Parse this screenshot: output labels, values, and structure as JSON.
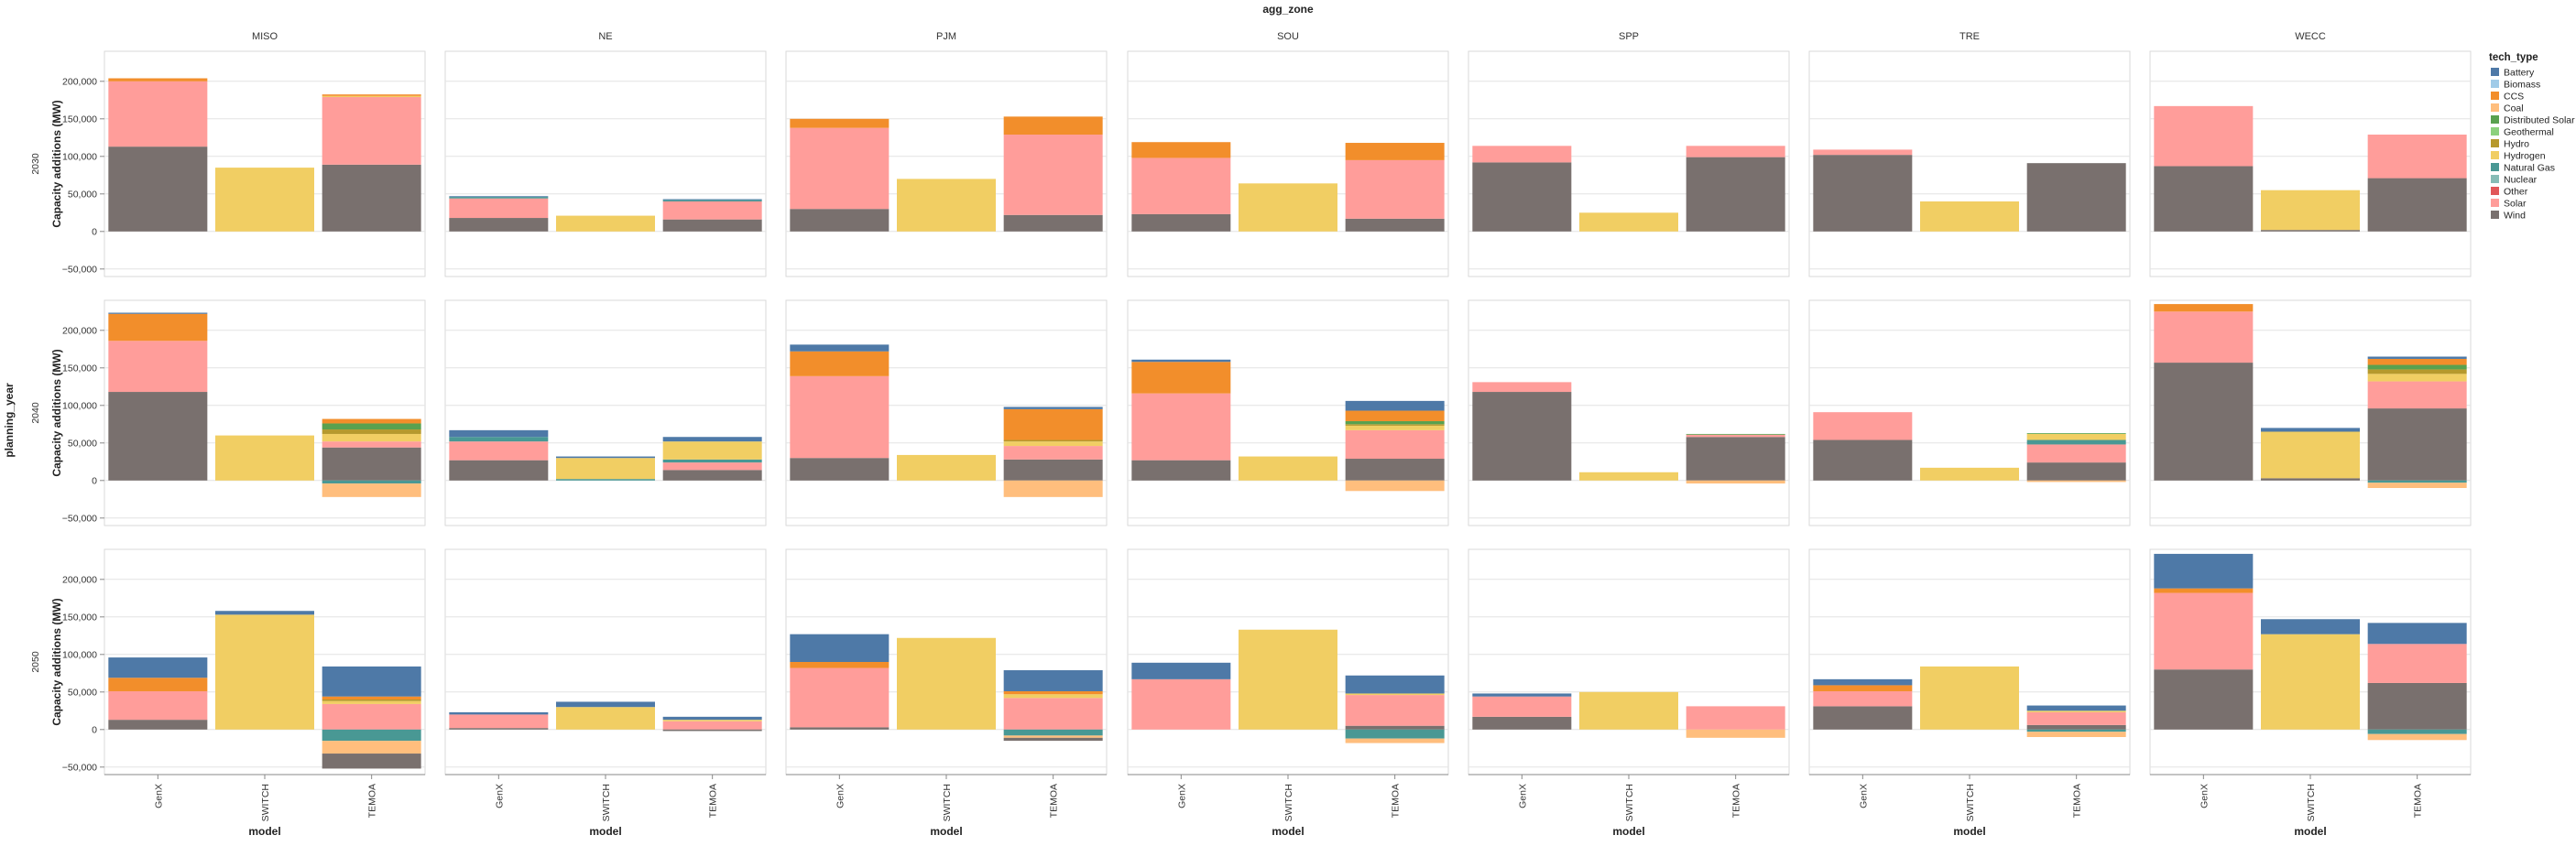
{
  "chart_data": {
    "type": "bar",
    "stacked": true,
    "title": "agg_zone",
    "row_title": "planning_year",
    "xlabel": "model",
    "ylabel": "Capacity additions (MW)",
    "ylim": [
      -60000,
      240000
    ],
    "yticks": [
      -50000,
      0,
      50000,
      100000,
      150000,
      200000
    ],
    "ytick_labels": [
      "−50,000",
      "0",
      "50,000",
      "100,000",
      "150,000",
      "200,000"
    ],
    "grid": true,
    "legend_position": "right",
    "legend_title": "tech_type",
    "zones": [
      "MISO",
      "NE",
      "PJM",
      "SOU",
      "SPP",
      "TRE",
      "WECC"
    ],
    "years": [
      "2030",
      "2040",
      "2050"
    ],
    "models": [
      "GenX",
      "SWITCH",
      "TEMOA"
    ],
    "techs": [
      {
        "name": "Battery",
        "color": "#4e79a7"
      },
      {
        "name": "Biomass",
        "color": "#a0cbe8"
      },
      {
        "name": "CCS",
        "color": "#f28e2b"
      },
      {
        "name": "Coal",
        "color": "#ffbe7d"
      },
      {
        "name": "Distributed Solar",
        "color": "#59a14f"
      },
      {
        "name": "Geothermal",
        "color": "#8cd17d"
      },
      {
        "name": "Hydro",
        "color": "#b6992d"
      },
      {
        "name": "Hydrogen",
        "color": "#f1ce63"
      },
      {
        "name": "Natural Gas",
        "color": "#499894"
      },
      {
        "name": "Nuclear",
        "color": "#86bcb6"
      },
      {
        "name": "Other",
        "color": "#e15759"
      },
      {
        "name": "Solar",
        "color": "#ff9d9a"
      },
      {
        "name": "Wind",
        "color": "#79706e"
      }
    ],
    "panels": {
      "2030": {
        "MISO": {
          "GenX": {
            "Wind": 113000,
            "Solar": 87000,
            "CCS": 4000
          },
          "SWITCH": {
            "Hydrogen": 85000
          },
          "TEMOA": {
            "Wind": 89000,
            "Solar": 90000,
            "CCS": 2000,
            "Hydrogen": 1500
          }
        },
        "NE": {
          "GenX": {
            "Wind": 18000,
            "Solar": 26000,
            "Natural Gas": 2000,
            "Battery": 1000
          },
          "SWITCH": {
            "Hydrogen": 21000
          },
          "TEMOA": {
            "Wind": 16000,
            "Solar": 24000,
            "Natural Gas": 2000,
            "Battery": 1000
          }
        },
        "PJM": {
          "GenX": {
            "Wind": 30000,
            "Solar": 108000,
            "CCS": 12000
          },
          "SWITCH": {
            "Hydrogen": 70000
          },
          "TEMOA": {
            "Wind": 22000,
            "Solar": 107000,
            "CCS": 24000
          }
        },
        "SOU": {
          "GenX": {
            "Wind": 23000,
            "Solar": 75000,
            "CCS": 21000
          },
          "SWITCH": {
            "Hydrogen": 64000
          },
          "TEMOA": {
            "Wind": 17000,
            "Solar": 78000,
            "CCS": 23000
          }
        },
        "SPP": {
          "GenX": {
            "Wind": 92000,
            "Solar": 22000
          },
          "SWITCH": {
            "Hydrogen": 25000
          },
          "TEMOA": {
            "Wind": 99000,
            "Solar": 15000
          }
        },
        "TRE": {
          "GenX": {
            "Wind": 102000,
            "Solar": 7000
          },
          "SWITCH": {
            "Hydrogen": 40000
          },
          "TEMOA": {
            "Wind": 91000
          }
        },
        "WECC": {
          "GenX": {
            "Wind": 87000,
            "Solar": 80000
          },
          "SWITCH": {
            "Wind": 2000,
            "Hydrogen": 53000
          },
          "TEMOA": {
            "Wind": 71000,
            "Solar": 58000
          }
        }
      },
      "2040": {
        "MISO": {
          "GenX": {
            "Wind": 118000,
            "Solar": 68000,
            "CCS": 36000,
            "Battery": 1500
          },
          "SWITCH": {
            "Hydrogen": 60000
          },
          "TEMOA": {
            "Wind": 44000,
            "Hydrogen": 10000,
            "Solar": 8000,
            "Distributed Solar": 8000,
            "Hydro": 6000,
            "CCS": 6000,
            "Natural Gas": -4000,
            "Coal": -18000
          }
        },
        "NE": {
          "GenX": {
            "Wind": 27000,
            "Solar": 25000,
            "Natural Gas": 6000,
            "Battery": 9000
          },
          "SWITCH": {
            "Hydrogen": 28000,
            "Natural Gas": 2000,
            "Battery": 2000
          },
          "TEMOA": {
            "Wind": 14000,
            "Solar": 10000,
            "Hydrogen": 24000,
            "Natural Gas": 4000,
            "Battery": 6000
          }
        },
        "PJM": {
          "GenX": {
            "Wind": 30000,
            "Solar": 109000,
            "CCS": 33000,
            "Battery": 9000
          },
          "SWITCH": {
            "Hydrogen": 34000
          },
          "TEMOA": {
            "Wind": 28000,
            "Solar": 18000,
            "Hydrogen": 6000,
            "CCS": 41000,
            "Hydro": 2000,
            "Battery": 3000,
            "Coal": -22000
          }
        },
        "SOU": {
          "GenX": {
            "Wind": 27000,
            "Solar": 89000,
            "CCS": 42000,
            "Battery": 3000
          },
          "SWITCH": {
            "Hydrogen": 32000
          },
          "TEMOA": {
            "Wind": 29000,
            "Solar": 38000,
            "Distributed Solar": 4000,
            "Hydrogen": 6000,
            "CCS": 14000,
            "Hydro": 2000,
            "Battery": 13000,
            "Coal": -14000
          }
        },
        "SPP": {
          "GenX": {
            "Wind": 118000,
            "Solar": 13000
          },
          "SWITCH": {
            "Hydrogen": 11000
          },
          "TEMOA": {
            "Wind": 58000,
            "Solar": 3000,
            "Distributed Solar": 1000,
            "Coal": -4000
          }
        },
        "TRE": {
          "GenX": {
            "Wind": 54000,
            "Solar": 37000
          },
          "SWITCH": {
            "Hydrogen": 17000
          },
          "TEMOA": {
            "Wind": 24000,
            "Solar": 24000,
            "Hydrogen": 8000,
            "Natural Gas": 6000,
            "Distributed Solar": 1000,
            "Coal": -2000
          }
        },
        "WECC": {
          "GenX": {
            "Wind": 157000,
            "Solar": 68000,
            "CCS": 10000
          },
          "SWITCH": {
            "Wind": 3000,
            "Hydrogen": 62000,
            "Battery": 5000
          },
          "TEMOA": {
            "Wind": 96000,
            "Solar": 36000,
            "Hydrogen": 10000,
            "Distributed Solar": 6000,
            "Hydro": 6000,
            "CCS": 8000,
            "Battery": 3000,
            "Natural Gas": -3000,
            "Coal": -7000
          }
        }
      },
      "2050": {
        "MISO": {
          "GenX": {
            "Wind": 13000,
            "Solar": 38000,
            "CCS": 18000,
            "Battery": 27000
          },
          "SWITCH": {
            "Hydrogen": 153000,
            "Battery": 5000
          },
          "TEMOA": {
            "Wind": 0,
            "Solar": 34000,
            "Hydrogen": 4000,
            "Hydro": 2000,
            "CCS": 4000,
            "Battery": 40000,
            "Wind_neg": -20000,
            "Natural Gas": -15000,
            "Coal": -17000
          }
        },
        "NE": {
          "GenX": {
            "Wind": 2000,
            "Solar": 18000,
            "Battery": 3000
          },
          "SWITCH": {
            "Hydrogen": 30000,
            "Battery": 7000
          },
          "TEMOA": {
            "Wind": 0,
            "Solar": 11000,
            "Hydrogen": 2000,
            "Battery": 4000,
            "Wind_neg": -2000
          }
        },
        "PJM": {
          "GenX": {
            "Wind": 3000,
            "Solar": 79000,
            "CCS": 8000,
            "Battery": 37000
          },
          "SWITCH": {
            "Hydrogen": 122000
          },
          "TEMOA": {
            "Wind": 0,
            "Solar": 42000,
            "Hydrogen": 5000,
            "CCS": 4000,
            "Battery": 28000,
            "Wind_neg": -4000,
            "Natural Gas": -8000,
            "Coal": -3000
          }
        },
        "SOU": {
          "GenX": {
            "Wind": 0,
            "Solar": 67000,
            "Battery": 22000
          },
          "SWITCH": {
            "Hydrogen": 133000
          },
          "TEMOA": {
            "Wind": 5000,
            "Solar": 41000,
            "Hydrogen": 2000,
            "Battery": 24000,
            "Natural Gas": -12000,
            "Coal": -6000
          }
        },
        "SPP": {
          "GenX": {
            "Wind": 17000,
            "Solar": 27000,
            "Battery": 4000
          },
          "SWITCH": {
            "Hydrogen": 50000
          },
          "TEMOA": {
            "Wind": 0,
            "Solar": 31000,
            "Coal": -11000
          }
        },
        "TRE": {
          "GenX": {
            "Wind": 31000,
            "Solar": 20000,
            "CCS": 8000,
            "Battery": 8000
          },
          "SWITCH": {
            "Hydrogen": 84000
          },
          "TEMOA": {
            "Wind": 6000,
            "Solar": 17000,
            "Hydrogen": 2000,
            "Battery": 7000,
            "Natural Gas": -3000,
            "Coal": -7000
          }
        },
        "WECC": {
          "GenX": {
            "Wind": 80000,
            "Solar": 102000,
            "CCS": 6000,
            "Battery": 46000
          },
          "SWITCH": {
            "Hydrogen": 127000,
            "Battery": 20000
          },
          "TEMOA": {
            "Wind": 62000,
            "Solar": 52000,
            "Battery": 28000,
            "Natural Gas": -6000,
            "Coal": -8000
          }
        }
      }
    }
  }
}
